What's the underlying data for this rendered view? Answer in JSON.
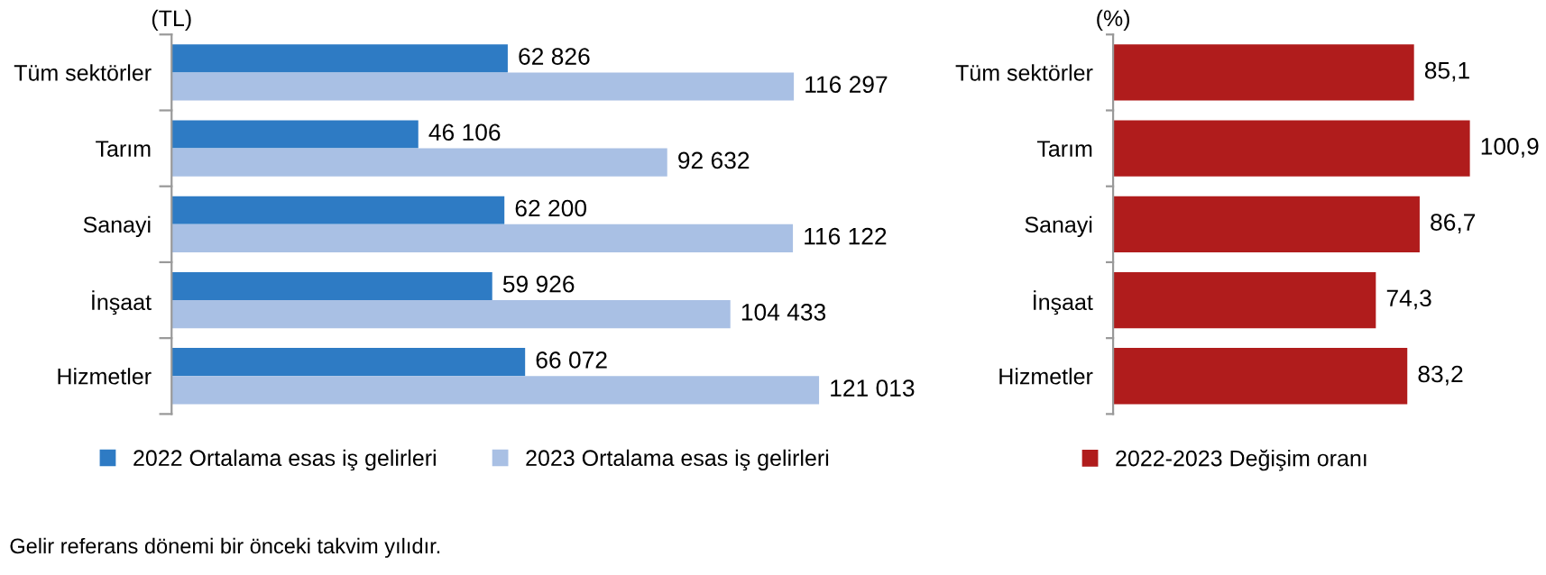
{
  "chart_data": [
    {
      "type": "bar",
      "orientation": "horizontal",
      "ylabel": "(TL)",
      "categories": [
        "Tüm sektörler",
        "Tarım",
        "Sanayi",
        "İnşaat",
        "Hizmetler"
      ],
      "series": [
        {
          "name": "2022 Ortalama esas iş gelirleri",
          "color": "#2e7bc4",
          "values": [
            62826,
            46106,
            62200,
            59926,
            66072
          ],
          "value_labels": [
            "62 826",
            "46 106",
            "62 200",
            "59 926",
            "66 072"
          ]
        },
        {
          "name": "2023 Ortalama esas iş gelirleri",
          "color": "#a9c0e4",
          "values": [
            116297,
            92632,
            116122,
            104433,
            121013
          ],
          "value_labels": [
            "116 297",
            "92 632",
            "116 122",
            "104 433",
            "121 013"
          ]
        }
      ],
      "legend": "bottom",
      "annotations": [
        "Gelir referans dönemi bir önceki takvim yılıdır."
      ]
    },
    {
      "type": "bar",
      "orientation": "horizontal",
      "ylabel": "(%)",
      "categories": [
        "Tüm sektörler",
        "Tarım",
        "Sanayi",
        "İnşaat",
        "Hizmetler"
      ],
      "series": [
        {
          "name": "2022-2023 Değişim oranı",
          "color": "#b01c1c",
          "values": [
            85.1,
            100.9,
            86.7,
            74.3,
            83.2
          ],
          "value_labels": [
            "85,1",
            "100,9",
            "86,7",
            "74,3",
            "83,2"
          ]
        }
      ],
      "legend": "bottom"
    }
  ]
}
